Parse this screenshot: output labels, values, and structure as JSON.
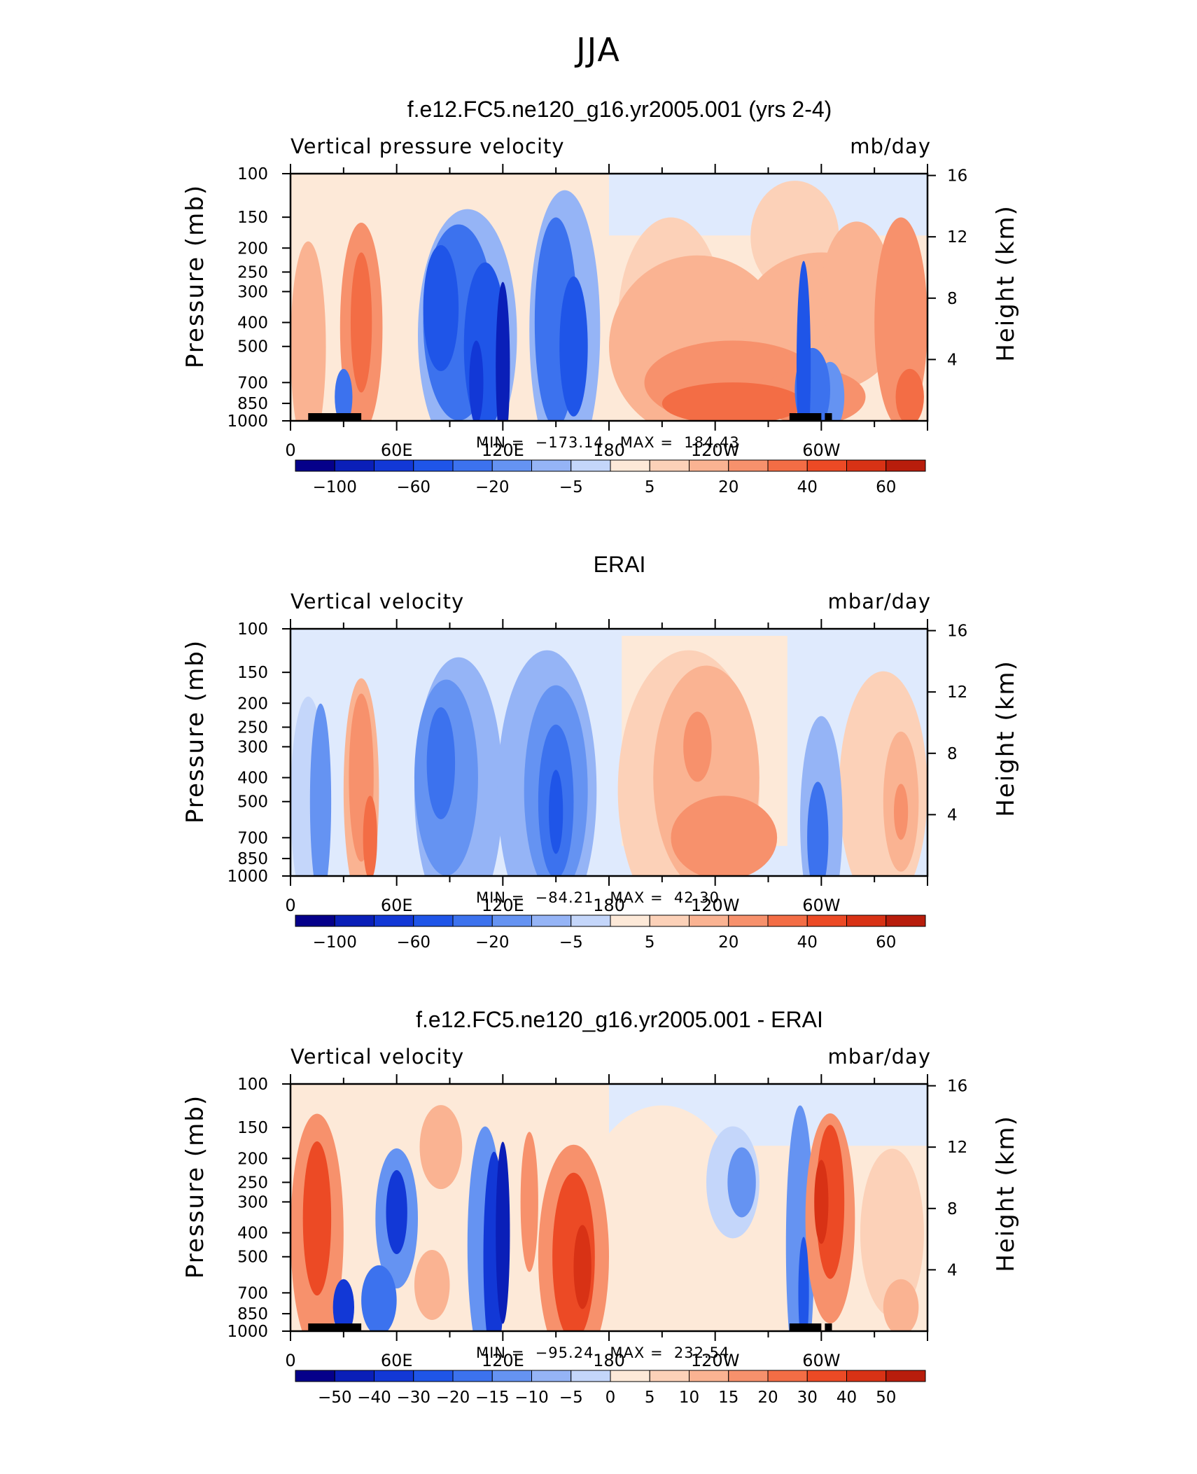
{
  "figure": {
    "title": "JJA"
  },
  "panels": [
    {
      "title": "f.e12.FC5.ne120_g16.yr2005.001 (yrs 2-4)",
      "variable": "Vertical pressure velocity",
      "units": "mb/day",
      "ylabel": "Pressure (mb)",
      "ylabel_right": "Height (km)",
      "min_label": "MIN",
      "min_value": "−173.14",
      "max_label": "MAX",
      "max_value": "184.43"
    },
    {
      "title": "ERAI",
      "variable": "Vertical velocity",
      "units": "mbar/day",
      "ylabel": "Pressure (mb)",
      "ylabel_right": "Height (km)",
      "min_label": "MIN",
      "min_value": "−84.21",
      "max_label": "MAX",
      "max_value": "42.30"
    },
    {
      "title": "f.e12.FC5.ne120_g16.yr2005.001 - ERAI",
      "variable": "Vertical velocity",
      "units": "mbar/day",
      "ylabel": "Pressure (mb)",
      "ylabel_right": "Height (km)",
      "min_label": "MIN",
      "min_value": "−95.24",
      "max_label": "MAX",
      "max_value": "232.54"
    }
  ],
  "chart_data": [
    {
      "type": "heatmap",
      "title": "f.e12.FC5.ne120_g16.yr2005.001 (yrs 2-4)",
      "xlabel": "",
      "ylabel": "Pressure (mb)",
      "ylabel_right": "Height (km)",
      "x_ticks": [
        "0",
        "60E",
        "120E",
        "180",
        "120W",
        "60W"
      ],
      "y_ticks": [
        100,
        150,
        200,
        250,
        300,
        400,
        500,
        700,
        850,
        1000
      ],
      "y_right_ticks": [
        16,
        12,
        8,
        4
      ],
      "ylim": [
        1000,
        100
      ],
      "y_scale": "log",
      "colorbar_labels": [
        "−100",
        "−60",
        "−20",
        "−5",
        "5",
        "20",
        "40",
        "60"
      ],
      "min": -173.14,
      "max": 184.43
    },
    {
      "type": "heatmap",
      "title": "ERAI",
      "xlabel": "",
      "ylabel": "Pressure (mb)",
      "ylabel_right": "Height (km)",
      "x_ticks": [
        "0",
        "60E",
        "120E",
        "180",
        "120W",
        "60W"
      ],
      "y_ticks": [
        100,
        150,
        200,
        250,
        300,
        400,
        500,
        700,
        850,
        1000
      ],
      "y_right_ticks": [
        16,
        12,
        8,
        4
      ],
      "ylim": [
        1000,
        100
      ],
      "y_scale": "log",
      "colorbar_labels": [
        "−100",
        "−60",
        "−20",
        "−5",
        "5",
        "20",
        "40",
        "60"
      ],
      "min": -84.21,
      "max": 42.3
    },
    {
      "type": "heatmap",
      "title": "f.e12.FC5.ne120_g16.yr2005.001 - ERAI",
      "xlabel": "",
      "ylabel": "Pressure (mb)",
      "ylabel_right": "Height (km)",
      "x_ticks": [
        "0",
        "60E",
        "120E",
        "180",
        "120W",
        "60W"
      ],
      "y_ticks": [
        100,
        150,
        200,
        250,
        300,
        400,
        500,
        700,
        850,
        1000
      ],
      "y_right_ticks": [
        16,
        12,
        8,
        4
      ],
      "ylim": [
        1000,
        100
      ],
      "y_scale": "log",
      "colorbar_labels": [
        "−50",
        "−40",
        "−30",
        "−20",
        "−15",
        "−10",
        "−5",
        "0",
        "5",
        "10",
        "15",
        "20",
        "30",
        "40",
        "50"
      ],
      "min": -95.24,
      "max": 232.54
    }
  ],
  "colors": {
    "blue_ramp": [
      "#05008a",
      "#0a1fb8",
      "#1238d6",
      "#1f55e8",
      "#3c72ee",
      "#6593f2",
      "#95b4f6",
      "#c4d6fa",
      "#dfeafd"
    ],
    "red_ramp": [
      "#fde9d8",
      "#fcd1b8",
      "#fab392",
      "#f7916c",
      "#f36d45",
      "#ec4a25",
      "#d83215",
      "#b81d0c",
      "#8c0a03"
    ]
  }
}
